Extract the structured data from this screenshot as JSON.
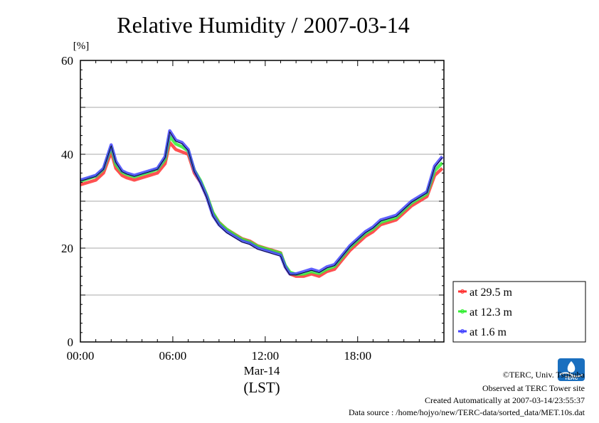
{
  "chart_data": {
    "type": "line",
    "title": "Relative Humidity / 2007-03-14",
    "ylabel": "[%]",
    "xlabel": "Mar-14",
    "xlabel_sub": "(LST)",
    "ylim": [
      0,
      60
    ],
    "xlim": [
      0,
      23.6
    ],
    "yticks": [
      0,
      20,
      40,
      60
    ],
    "xticks": [
      {
        "value": 0,
        "label": "00:00"
      },
      {
        "value": 6,
        "label": "06:00"
      },
      {
        "value": 12,
        "label": "12:00"
      },
      {
        "value": 18,
        "label": "18:00"
      }
    ],
    "grid": true,
    "legend_placement": "right",
    "series": [
      {
        "name": "at 29.5 m",
        "color": "#ff3333",
        "x": [
          0.0,
          0.5,
          1.0,
          1.5,
          2.0,
          2.3,
          2.7,
          3.0,
          3.5,
          4.0,
          4.5,
          5.0,
          5.5,
          5.8,
          6.2,
          6.6,
          7.0,
          7.4,
          7.8,
          8.2,
          8.6,
          9.0,
          9.5,
          10.0,
          10.5,
          11.0,
          11.5,
          12.0,
          12.5,
          13.0,
          13.3,
          13.6,
          14.0,
          14.5,
          15.0,
          15.5,
          16.0,
          16.5,
          17.0,
          17.5,
          18.0,
          18.5,
          19.0,
          19.5,
          20.0,
          20.5,
          21.0,
          21.5,
          22.0,
          22.5,
          23.0,
          23.5
        ],
        "values": [
          33.5,
          34,
          34.5,
          36,
          40.5,
          37,
          35.5,
          35,
          34.5,
          35,
          35.5,
          36,
          38,
          42.5,
          41,
          40.5,
          40,
          36,
          34,
          31,
          27.5,
          25.5,
          24,
          23,
          22,
          21.5,
          20.5,
          20,
          19.5,
          19,
          16,
          14.5,
          14,
          14,
          14.5,
          14,
          15,
          15.5,
          17.5,
          19.5,
          21,
          22.5,
          23.5,
          25,
          25.5,
          26,
          27.5,
          29,
          30,
          31,
          35.5,
          37
        ]
      },
      {
        "name": "at 12.3 m",
        "color": "#33ee33",
        "x": [
          0.0,
          0.5,
          1.0,
          1.5,
          2.0,
          2.3,
          2.7,
          3.0,
          3.5,
          4.0,
          4.5,
          5.0,
          5.5,
          5.8,
          6.2,
          6.6,
          7.0,
          7.4,
          7.8,
          8.2,
          8.6,
          9.0,
          9.5,
          10.0,
          10.5,
          11.0,
          11.5,
          12.0,
          12.5,
          13.0,
          13.3,
          13.6,
          14.0,
          14.5,
          15.0,
          15.5,
          16.0,
          16.5,
          17.0,
          17.5,
          18.0,
          18.5,
          19.0,
          19.5,
          20.0,
          20.5,
          21.0,
          21.5,
          22.0,
          22.5,
          23.0,
          23.5
        ],
        "values": [
          34.2,
          34.8,
          35.3,
          36.8,
          41.5,
          37.8,
          36.2,
          35.7,
          35.2,
          35.7,
          36.2,
          36.8,
          38.9,
          43.8,
          42.2,
          41.6,
          40.7,
          36.6,
          34.4,
          31.3,
          27.6,
          25.4,
          24,
          22.9,
          21.9,
          21.3,
          20.4,
          19.9,
          19.4,
          18.9,
          16.3,
          14.9,
          14.4,
          14.5,
          15,
          14.6,
          15.5,
          16.1,
          18.1,
          20.1,
          21.6,
          23.1,
          24.1,
          25.5,
          26,
          26.5,
          28.1,
          29.6,
          30.6,
          31.6,
          36.5,
          38.2
        ]
      },
      {
        "name": "at 1.6 m",
        "color": "#4444ff",
        "x": [
          0.0,
          0.5,
          1.0,
          1.5,
          2.0,
          2.3,
          2.7,
          3.0,
          3.5,
          4.0,
          4.5,
          5.0,
          5.5,
          5.8,
          6.2,
          6.6,
          7.0,
          7.4,
          7.8,
          8.2,
          8.6,
          9.0,
          9.5,
          10.0,
          10.5,
          11.0,
          11.5,
          12.0,
          12.5,
          13.0,
          13.3,
          13.6,
          14.0,
          14.5,
          15.0,
          15.5,
          16.0,
          16.5,
          17.0,
          17.5,
          18.0,
          18.5,
          19.0,
          19.5,
          20.0,
          20.5,
          21.0,
          21.5,
          22.0,
          22.5,
          23.0,
          23.5
        ],
        "values": [
          34.5,
          35,
          35.5,
          37,
          42,
          38.5,
          36.5,
          36,
          35.5,
          36,
          36.5,
          37,
          39.5,
          45,
          43,
          42.5,
          41,
          36.5,
          34,
          31,
          27,
          25,
          23.5,
          22.5,
          21.5,
          21,
          20,
          19.5,
          19,
          18.5,
          16,
          14.5,
          14.5,
          15,
          15.5,
          15,
          16,
          16.5,
          18.5,
          20.5,
          22,
          23.5,
          24.5,
          26,
          26.5,
          27,
          28.5,
          30,
          31,
          32,
          37.5,
          39.5
        ]
      }
    ]
  },
  "footer": {
    "logo_text": "TERC",
    "copyright": "©TERC, Univ. Tsukuba",
    "observed": "Observed at TERC Tower site",
    "created": "Created Automatically at 2007-03-14/23:55:37",
    "source": "Data source : /home/hojyo/new/TERC-data/sorted_data/MET.10s.dat"
  },
  "colors": {
    "grid": "#aaaaaa",
    "axis": "#000000",
    "logo": "#1a6fbf"
  }
}
